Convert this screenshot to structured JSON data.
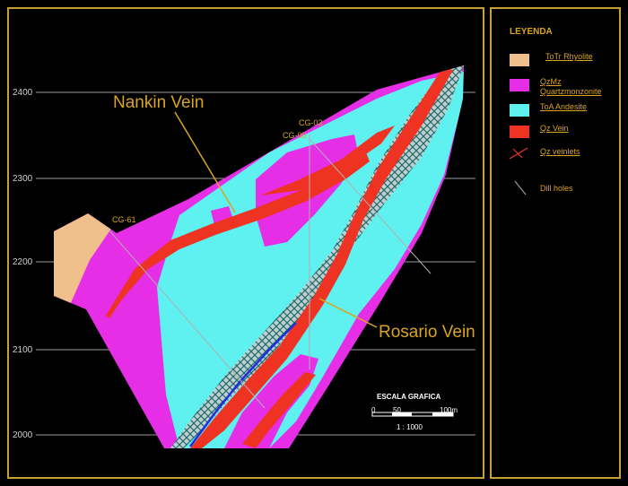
{
  "map": {
    "callouts": {
      "nankin": "Nankin Vein",
      "rosario": "Rosario Vein"
    },
    "elevations": [
      "2400",
      "2300",
      "2200",
      "2100",
      "2000"
    ],
    "drill_holes": {
      "cg03": "CG-03",
      "cg05": "CG-05",
      "cg61": "CG-61"
    },
    "scale": {
      "title": "ESCALA GRAFICA",
      "tick0": "0",
      "tick1": "50",
      "tick2": "100m",
      "ratio": "1 : 1000"
    },
    "colors": {
      "background": "#000000",
      "frame": "#c8a032",
      "rhyolite": "#f0c08c",
      "quartzmonzonite": "#e62ee6",
      "andesite": "#5ff0f0",
      "vein": "#ee3322",
      "veinlet_hatch": "#1f6a6a",
      "grid": "#9a9a9a"
    }
  },
  "legend": {
    "title": "LEYENDA",
    "items": [
      {
        "label": "ToTr Rhyolite",
        "color": "#f0c08c",
        "kind": "fill",
        "underline": true
      },
      {
        "label": "QzMz Quartzmonzonite",
        "color": "#e62ee6",
        "kind": "fill",
        "underline": true
      },
      {
        "label": "ToA Andesite",
        "color": "#5ff0f0",
        "kind": "fill",
        "underline": true
      },
      {
        "label": "Qz Vein",
        "color": "#ee3322",
        "kind": "fill",
        "underline": true
      },
      {
        "label": "Qz veinlets",
        "color": "#ee3322",
        "kind": "cross",
        "underline": true
      },
      {
        "label": "Dill holes",
        "color": "#888888",
        "kind": "line",
        "underline": false
      }
    ]
  }
}
